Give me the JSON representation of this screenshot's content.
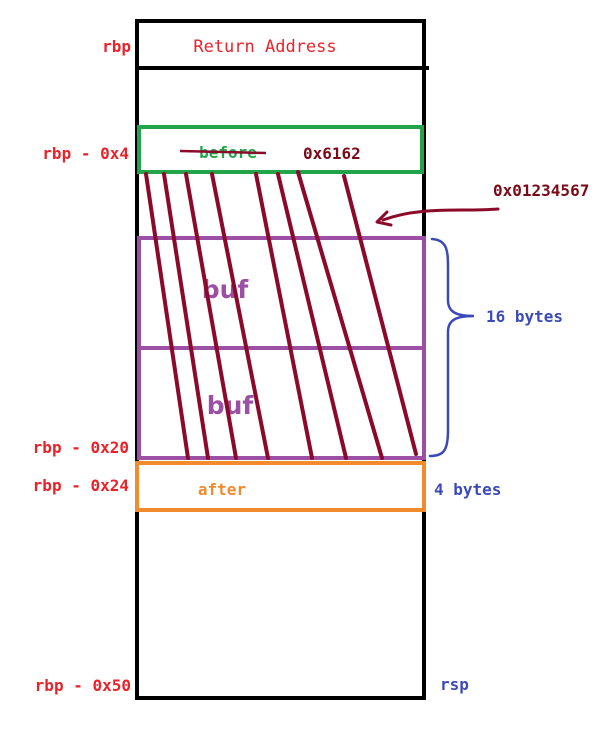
{
  "labels": {
    "rbp": "rbp",
    "rbp_minus_4": "rbp - 0x4",
    "rbp_minus_20": "rbp - 0x20",
    "rbp_minus_24": "rbp - 0x24",
    "rbp_minus_50": "rbp - 0x50",
    "rsp": "rsp"
  },
  "cells": {
    "return_address": "Return Address",
    "before": "before",
    "before_value": "0x6162",
    "buf_upper": "buf",
    "buf_lower": "buf",
    "after": "after"
  },
  "annotations": {
    "overflow_value": "0x01234567",
    "buf_size": "16 bytes",
    "after_size": "4 bytes"
  },
  "colors": {
    "offset_label": "#e8232a",
    "value_label": "#7a0a18",
    "size_label": "#3b4ab8",
    "before_box": "#22a54a",
    "buf_box": "#9b4fa5",
    "after_box": "#f28a2e",
    "hatch": "#8b0a2a",
    "stack_frame": "#000000"
  }
}
